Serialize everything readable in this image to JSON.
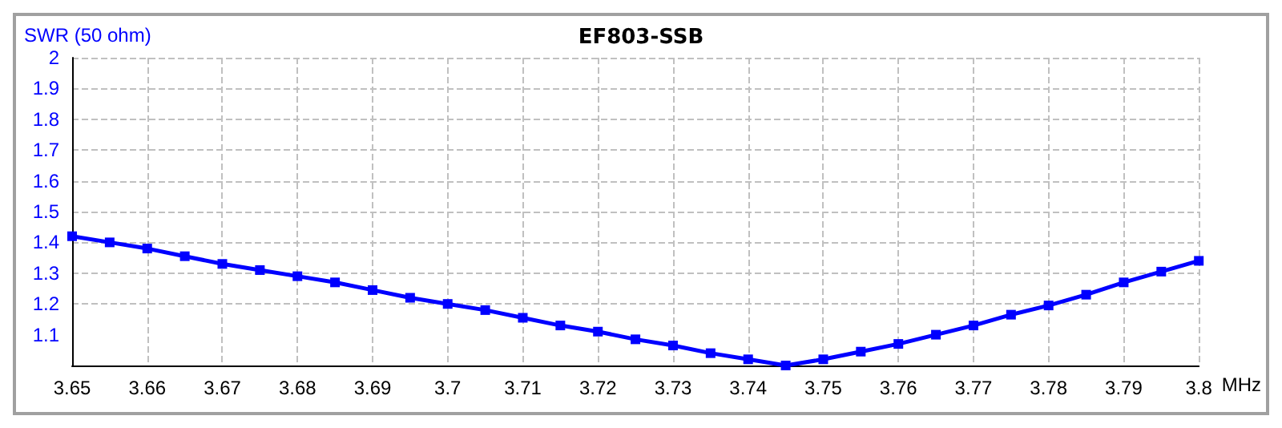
{
  "chart_data": {
    "type": "line",
    "title": "EF803-SSB",
    "ylabel": "SWR (50 ohm)",
    "xlabel": "MHz",
    "x": [
      3.65,
      3.655,
      3.66,
      3.665,
      3.67,
      3.675,
      3.68,
      3.685,
      3.69,
      3.695,
      3.7,
      3.705,
      3.71,
      3.715,
      3.72,
      3.725,
      3.73,
      3.735,
      3.74,
      3.745,
      3.75,
      3.755,
      3.76,
      3.765,
      3.77,
      3.775,
      3.78,
      3.785,
      3.79,
      3.795,
      3.8
    ],
    "series": [
      {
        "color": "#0000ff",
        "values": [
          1.42,
          1.4,
          1.38,
          1.355,
          1.33,
          1.31,
          1.29,
          1.27,
          1.245,
          1.22,
          1.2,
          1.18,
          1.155,
          1.13,
          1.11,
          1.085,
          1.065,
          1.04,
          1.02,
          1.0,
          1.02,
          1.045,
          1.07,
          1.1,
          1.13,
          1.165,
          1.195,
          1.23,
          1.27,
          1.305,
          1.34
        ]
      }
    ],
    "xlim": [
      3.65,
      3.8
    ],
    "xticks": [
      3.65,
      3.66,
      3.67,
      3.68,
      3.69,
      3.7,
      3.71,
      3.72,
      3.73,
      3.74,
      3.75,
      3.76,
      3.77,
      3.78,
      3.79,
      3.8
    ],
    "ylim": [
      1,
      2
    ],
    "yticks": [
      1.1,
      1.2,
      1.3,
      1.4,
      1.5,
      1.6,
      1.7,
      1.8,
      1.9,
      2
    ],
    "grid": true,
    "marker": "square",
    "line_style": "solid"
  }
}
